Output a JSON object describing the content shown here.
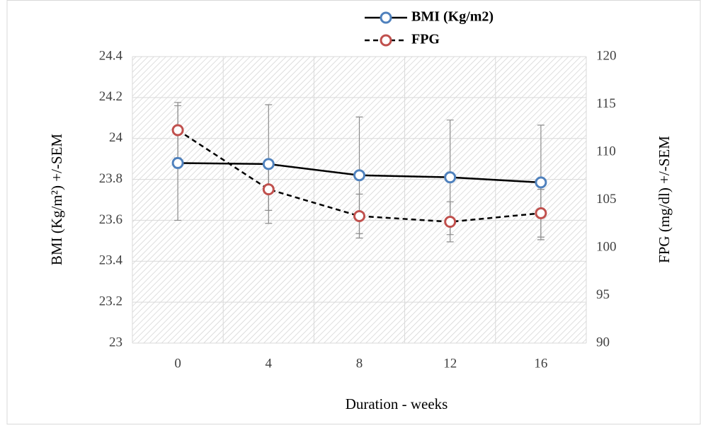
{
  "chart_data": {
    "type": "line",
    "x_label": "Duration - weeks",
    "y_label": "BMI (Kg/m²) +/-SEM",
    "y2_label": "FPG (mg/dl) +/-SEM",
    "categories": [
      "0",
      "4",
      "8",
      "12",
      "16"
    ],
    "series": [
      {
        "name": "BMI (Kg/m2)",
        "color": "#4f81bd",
        "line_color": "#000000",
        "dashed": false,
        "values": [
          23.88,
          23.875,
          23.82,
          23.81,
          23.785
        ],
        "errors": [
          0.28,
          0.29,
          0.285,
          0.28,
          0.28
        ]
      },
      {
        "name": "FPG",
        "color": "#c0504d",
        "line_color": "#000000",
        "dashed": true,
        "axis": "y2",
        "values": [
          112.3,
          106.1,
          103.3,
          102.7,
          103.6
        ],
        "errors": [
          2.9,
          2.2,
          2.3,
          2.1,
          2.5
        ]
      }
    ],
    "ylim": [
      23,
      24.4
    ],
    "yticks": [
      23,
      23.2,
      23.4,
      23.6,
      23.8,
      24,
      24.2,
      24.4
    ],
    "y2lim": [
      90,
      120
    ],
    "y2ticks": [
      90,
      95,
      100,
      105,
      110,
      115,
      120
    ],
    "grid": true,
    "legend": "top"
  }
}
